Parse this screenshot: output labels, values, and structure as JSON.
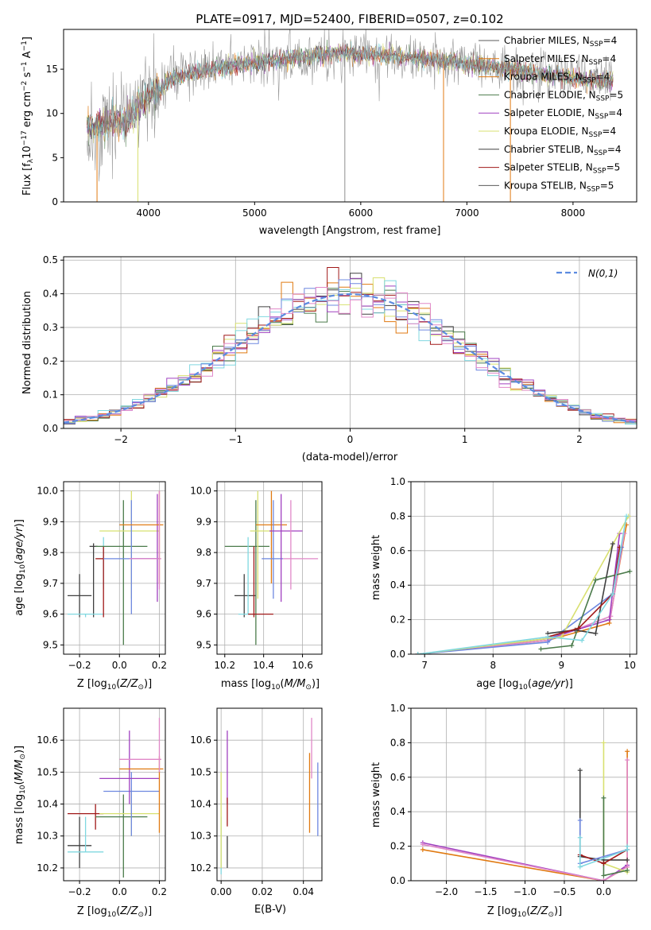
{
  "title": "PLATE=0917, MJD=52400, FIBERID=0507, z=0.102",
  "model_names": [
    "Chabrier MILES, N_SSP=4",
    "Salpeter MILES, N_SSP=4",
    "Kroupa MILES, N_SSP=4",
    "Chabrier ELODIE, N_SSP=5",
    "Salpeter ELODIE, N_SSP=4",
    "Kroupa ELODIE, N_SSP=4",
    "Chabrier STELIB, N_SSP=4",
    "Salpeter STELIB, N_SSP=5",
    "Kroupa STELIB, N_SSP=5"
  ],
  "colors": [
    "#5b5b5b",
    "#8f8f8f",
    "#e07a12",
    "#4a7a4a",
    "#a040c0",
    "#d8e070",
    "#404040",
    "#a01818",
    "#80d8e0",
    "#6e88e0",
    "#e088c8"
  ],
  "legend": [
    {
      "name": "Chabrier MILES",
      "nssp": "=4"
    },
    {
      "name": "Salpeter MILES",
      "nssp": "=4"
    },
    {
      "name": "Kroupa MILES",
      "nssp": "=4"
    },
    {
      "name": "Chabrier ELODIE",
      "nssp": "=5"
    },
    {
      "name": "Salpeter ELODIE",
      "nssp": "=4"
    },
    {
      "name": "Kroupa ELODIE",
      "nssp": "=4"
    },
    {
      "name": "Chabrier STELIB",
      "nssp": "=4"
    },
    {
      "name": "Salpeter STELIB",
      "nssp": "=5"
    },
    {
      "name": "Kroupa STELIB",
      "nssp": "=5"
    }
  ],
  "chart_data": [
    {
      "id": "spectrum",
      "type": "line",
      "xlabel": "wavelength [Angstrom, rest frame]",
      "ylabel": "Flux [f_λ 10^-17 erg cm^-2 s^-1 A^-1]",
      "xlim": [
        3200,
        8600
      ],
      "ylim": [
        0,
        19.5
      ],
      "xticks": [
        4000,
        5000,
        6000,
        7000,
        8000
      ],
      "yticks": [
        0,
        5,
        10,
        15
      ],
      "continuum": {
        "x": [
          3400,
          3600,
          3800,
          4000,
          4100,
          4200,
          4400,
          4600,
          5000,
          5400,
          5800,
          6200,
          6600,
          7000,
          7400,
          7800,
          8000,
          8200,
          8400
        ],
        "y": [
          8.2,
          8.8,
          9.4,
          11.8,
          12.6,
          13.8,
          14.5,
          15.1,
          15.8,
          16.3,
          16.9,
          16.6,
          16.2,
          15.6,
          15.0,
          14.3,
          14.0,
          13.8,
          13.6
        ]
      }
    },
    {
      "id": "residuals",
      "type": "line",
      "xlabel": "(data-model)/error",
      "ylabel": "Normed distribution",
      "xlim": [
        -2.5,
        2.5
      ],
      "ylim": [
        0,
        0.51
      ],
      "xticks": [
        -2,
        -1,
        0,
        1,
        2
      ],
      "yticks": [
        0.0,
        0.1,
        0.2,
        0.3,
        0.4,
        0.5
      ],
      "legend": "N(0,1)",
      "gaussian": {
        "mean": 0,
        "sigma": 1
      },
      "hist_bin_width": 0.1
    },
    {
      "id": "age_vs_Z",
      "type": "errorbar",
      "xlabel": "Z [log10(Z/Z⊙)]",
      "ylabel": "age  [log10(age/yr)]",
      "xlim": [
        -0.28,
        0.23
      ],
      "ylim": [
        9.47,
        10.03
      ],
      "xticks": [
        -0.2,
        0.0,
        0.2
      ],
      "yticks": [
        9.5,
        9.6,
        9.7,
        9.8,
        9.9,
        10.0
      ],
      "points": [
        {
          "c": "#404040",
          "x": -0.2,
          "xlo": -0.26,
          "xhi": -0.14,
          "y": 9.66,
          "ylo": 9.59,
          "yhi": 9.73
        },
        {
          "c": "#404040",
          "x": -0.13,
          "xlo": -0.15,
          "xhi": -0.11,
          "y": 9.82,
          "ylo": 9.59,
          "yhi": 9.83
        },
        {
          "c": "#80d8e0",
          "x": -0.17,
          "xlo": -0.26,
          "xhi": -0.08,
          "y": 9.6,
          "ylo": 9.59,
          "yhi": 9.6
        },
        {
          "c": "#80d8e0",
          "x": -0.08,
          "xlo": -0.08,
          "xhi": -0.08,
          "y": 9.77,
          "ylo": 9.68,
          "yhi": 9.85
        },
        {
          "c": "#a01818",
          "x": -0.08,
          "xlo": -0.12,
          "xhi": -0.08,
          "y": 9.78,
          "ylo": 9.59,
          "yhi": 9.82
        },
        {
          "c": "#4a7a4a",
          "x": 0.02,
          "xlo": -0.12,
          "xhi": 0.14,
          "y": 9.82,
          "ylo": 9.5,
          "yhi": 9.97
        },
        {
          "c": "#d8e070",
          "x": 0.06,
          "xlo": -0.1,
          "xhi": 0.2,
          "y": 9.87,
          "ylo": 9.65,
          "yhi": 10.0
        },
        {
          "c": "#6e88e0",
          "x": 0.06,
          "xlo": -0.08,
          "xhi": 0.2,
          "y": 9.78,
          "ylo": 9.6,
          "yhi": 9.97
        },
        {
          "c": "#a040c0",
          "x": 0.19,
          "xlo": 0.05,
          "xhi": 0.2,
          "y": 9.78,
          "ylo": 9.64,
          "yhi": 9.99
        },
        {
          "c": "#e07a12",
          "x": 0.2,
          "xlo": 0.0,
          "xhi": 0.22,
          "y": 9.89,
          "ylo": 9.7,
          "yhi": 10.0
        },
        {
          "c": "#e088c8",
          "x": 0.2,
          "xlo": 0.05,
          "xhi": 0.21,
          "y": 9.78,
          "ylo": 9.68,
          "yhi": 10.0
        }
      ]
    },
    {
      "id": "age_vs_mass",
      "type": "errorbar",
      "xlabel": "mass [log10(M/M⊙)]",
      "ylabel": "",
      "xlim": [
        10.16,
        10.7
      ],
      "ylim": [
        9.47,
        10.03
      ],
      "xticks": [
        10.2,
        10.4,
        10.6
      ],
      "yticks": [
        9.5,
        9.6,
        9.7,
        9.8,
        9.9,
        10.0
      ],
      "points": [
        {
          "c": "#404040",
          "x": 10.3,
          "xlo": 10.25,
          "xhi": 10.36,
          "y": 9.66,
          "ylo": 9.59,
          "yhi": 9.73
        },
        {
          "c": "#4a7a4a",
          "x": 10.36,
          "xlo": 10.2,
          "xhi": 10.43,
          "y": 9.82,
          "ylo": 9.5,
          "yhi": 9.97
        },
        {
          "c": "#80d8e0",
          "x": 10.32,
          "xlo": 10.27,
          "xhi": 10.38,
          "y": 9.6,
          "ylo": 9.6,
          "yhi": 9.85
        },
        {
          "c": "#a01818",
          "x": 10.35,
          "xlo": 10.32,
          "xhi": 10.45,
          "y": 9.6,
          "ylo": 9.59,
          "yhi": 9.82
        },
        {
          "c": "#d8e070",
          "x": 10.37,
          "xlo": 10.33,
          "xhi": 10.44,
          "y": 9.87,
          "ylo": 9.65,
          "yhi": 10.0
        },
        {
          "c": "#e07a12",
          "x": 10.44,
          "xlo": 10.36,
          "xhi": 10.52,
          "y": 9.89,
          "ylo": 9.7,
          "yhi": 10.0
        },
        {
          "c": "#6e88e0",
          "x": 10.45,
          "xlo": 10.39,
          "xhi": 10.5,
          "y": 9.78,
          "ylo": 9.65,
          "yhi": 9.97
        },
        {
          "c": "#a040c0",
          "x": 10.49,
          "xlo": 10.43,
          "xhi": 10.6,
          "y": 9.87,
          "ylo": 9.64,
          "yhi": 9.99
        },
        {
          "c": "#e088c8",
          "x": 10.54,
          "xlo": 10.5,
          "xhi": 10.68,
          "y": 9.78,
          "ylo": 9.68,
          "yhi": 9.97
        }
      ]
    },
    {
      "id": "weight_vs_age",
      "type": "line",
      "xlabel": "age  [log10(age/yr)]",
      "ylabel": "mass weight",
      "xlim": [
        6.8,
        10.1
      ],
      "ylim": [
        0,
        1.0
      ],
      "xticks": [
        7,
        8,
        9,
        10
      ],
      "yticks": [
        0.0,
        0.2,
        0.4,
        0.6,
        0.8,
        1.0
      ],
      "series": [
        {
          "c": "#e07a12",
          "x": [
            6.9,
            8.8,
            9.7,
            9.95
          ],
          "y": [
            0.0,
            0.08,
            0.18,
            0.75
          ]
        },
        {
          "c": "#e088c8",
          "x": [
            6.9,
            8.8,
            9.72,
            9.92
          ],
          "y": [
            0.0,
            0.08,
            0.22,
            0.7
          ]
        },
        {
          "c": "#a040c0",
          "x": [
            6.9,
            8.8,
            9.7,
            9.85
          ],
          "y": [
            0.0,
            0.09,
            0.2,
            0.7
          ]
        },
        {
          "c": "#6e88e0",
          "x": [
            6.9,
            8.8,
            9.75,
            9.88
          ],
          "y": [
            0.0,
            0.07,
            0.35,
            0.62
          ]
        },
        {
          "c": "#d8e070",
          "x": [
            6.9,
            9.0,
            9.98
          ],
          "y": [
            0.0,
            0.1,
            0.8
          ]
        },
        {
          "c": "#4a7a4a",
          "x": [
            8.7,
            9.15,
            9.5,
            10.0
          ],
          "y": [
            0.03,
            0.05,
            0.43,
            0.48
          ]
        },
        {
          "c": "#404040",
          "x": [
            8.8,
            9.2,
            9.5,
            9.75
          ],
          "y": [
            0.12,
            0.14,
            0.12,
            0.64
          ]
        },
        {
          "c": "#a01818",
          "x": [
            8.8,
            9.25,
            9.75,
            9.85
          ],
          "y": [
            0.1,
            0.15,
            0.35,
            0.62
          ]
        },
        {
          "c": "#80d8e0",
          "x": [
            6.9,
            8.8,
            9.3,
            9.75,
            9.95
          ],
          "y": [
            0.0,
            0.1,
            0.08,
            0.35,
            0.8
          ]
        }
      ]
    },
    {
      "id": "mass_vs_Z",
      "type": "errorbar",
      "xlabel": "Z [log10(Z/Z⊙)]",
      "ylabel": "mass [log10(M/M⊙)]",
      "xlim": [
        -0.28,
        0.23
      ],
      "ylim": [
        10.16,
        10.7
      ],
      "xticks": [
        -0.2,
        0.0,
        0.2
      ],
      "yticks": [
        10.2,
        10.3,
        10.4,
        10.5,
        10.6
      ],
      "points": [
        {
          "c": "#404040",
          "x": -0.2,
          "xlo": -0.26,
          "xhi": -0.14,
          "y": 10.27,
          "ylo": 10.2,
          "yhi": 10.36
        },
        {
          "c": "#80d8e0",
          "x": -0.17,
          "xlo": -0.26,
          "xhi": -0.08,
          "y": 10.25,
          "ylo": 10.25,
          "yhi": 10.36
        },
        {
          "c": "#a01818",
          "x": -0.12,
          "xlo": -0.26,
          "xhi": -0.08,
          "y": 10.37,
          "ylo": 10.32,
          "yhi": 10.4
        },
        {
          "c": "#4a7a4a",
          "x": 0.02,
          "xlo": -0.12,
          "xhi": 0.14,
          "y": 10.36,
          "ylo": 10.17,
          "yhi": 10.43
        },
        {
          "c": "#d8e070",
          "x": 0.06,
          "xlo": -0.1,
          "xhi": 0.2,
          "y": 10.37,
          "ylo": 10.3,
          "yhi": 10.45
        },
        {
          "c": "#6e88e0",
          "x": 0.06,
          "xlo": -0.08,
          "xhi": 0.2,
          "y": 10.44,
          "ylo": 10.3,
          "yhi": 10.5
        },
        {
          "c": "#a040c0",
          "x": 0.05,
          "xlo": -0.1,
          "xhi": 0.2,
          "y": 10.48,
          "ylo": 10.4,
          "yhi": 10.63
        },
        {
          "c": "#e07a12",
          "x": 0.2,
          "xlo": 0.0,
          "xhi": 0.22,
          "y": 10.51,
          "ylo": 10.31,
          "yhi": 10.55
        },
        {
          "c": "#e088c8",
          "x": 0.2,
          "xlo": 0.0,
          "xhi": 0.21,
          "y": 10.54,
          "ylo": 10.5,
          "yhi": 10.67
        }
      ]
    },
    {
      "id": "mass_vs_ebv",
      "type": "errorbar",
      "xlabel": "E(B-V)",
      "ylabel": "",
      "xlim": [
        -0.002,
        0.049
      ],
      "ylim": [
        10.16,
        10.7
      ],
      "xticks": [
        0.0,
        0.02,
        0.04
      ],
      "yticks": [
        10.2,
        10.3,
        10.4,
        10.5,
        10.6
      ],
      "points": [
        {
          "c": "#80d8e0",
          "x": 0.0,
          "xlo": 0.0,
          "xhi": 0.0,
          "y": 10.25,
          "ylo": 10.18,
          "yhi": 10.36
        },
        {
          "c": "#d8e070",
          "x": 0.0,
          "xlo": 0.0,
          "xhi": 0.0,
          "y": 10.37,
          "ylo": 10.2,
          "yhi": 10.5
        },
        {
          "c": "#404040",
          "x": 0.003,
          "xlo": 0.003,
          "xhi": 0.003,
          "y": 10.27,
          "ylo": 10.2,
          "yhi": 10.3
        },
        {
          "c": "#a040c0",
          "x": 0.003,
          "xlo": 0.003,
          "xhi": 0.003,
          "y": 10.48,
          "ylo": 10.4,
          "yhi": 10.63
        },
        {
          "c": "#a01818",
          "x": 0.003,
          "xlo": 0.003,
          "xhi": 0.003,
          "y": 10.37,
          "ylo": 10.33,
          "yhi": 10.42
        },
        {
          "c": "#e07a12",
          "x": 0.043,
          "xlo": 0.043,
          "xhi": 0.043,
          "y": 10.51,
          "ylo": 10.31,
          "yhi": 10.56
        },
        {
          "c": "#e088c8",
          "x": 0.044,
          "xlo": 0.044,
          "xhi": 0.044,
          "y": 10.54,
          "ylo": 10.48,
          "yhi": 10.67
        },
        {
          "c": "#6e88e0",
          "x": 0.047,
          "xlo": 0.047,
          "xhi": 0.047,
          "y": 10.44,
          "ylo": 10.3,
          "yhi": 10.53
        }
      ]
    },
    {
      "id": "weight_vs_Z",
      "type": "line",
      "xlabel": "Z [log10(Z/Z⊙)]",
      "ylabel": "mass weight",
      "xlim": [
        -2.45,
        0.42
      ],
      "ylim": [
        0,
        1.0
      ],
      "xticks": [
        -2.0,
        -1.5,
        -1.0,
        -0.5,
        0.0
      ],
      "yticks": [
        0.0,
        0.2,
        0.4,
        0.6,
        0.8,
        1.0
      ],
      "series": [
        {
          "c": "#e07a12",
          "x": [
            -2.3,
            0.0,
            0.3,
            0.3
          ],
          "y": [
            0.18,
            0.0,
            0.08,
            0.75
          ]
        },
        {
          "c": "#a040c0",
          "x": [
            -2.3,
            0.0,
            0.3
          ],
          "y": [
            0.22,
            0.0,
            0.09
          ]
        },
        {
          "c": "#e088c8",
          "x": [
            -2.3,
            0.0,
            0.3,
            0.3
          ],
          "y": [
            0.21,
            0.0,
            0.08,
            0.7
          ]
        },
        {
          "c": "#d8e070",
          "x": [
            0.0,
            0.0,
            0.3
          ],
          "y": [
            0.8,
            0.1,
            0.05
          ]
        },
        {
          "c": "#4a7a4a",
          "x": [
            0.0,
            0.0,
            0.3
          ],
          "y": [
            0.48,
            0.03,
            0.06
          ]
        },
        {
          "c": "#404040",
          "x": [
            -0.3,
            -0.3,
            0.0,
            0.3
          ],
          "y": [
            0.64,
            0.14,
            0.12,
            0.12
          ]
        },
        {
          "c": "#a01818",
          "x": [
            -0.3,
            0.0,
            0.3
          ],
          "y": [
            0.15,
            0.1,
            0.18
          ]
        },
        {
          "c": "#6e88e0",
          "x": [
            -0.3,
            -0.3,
            0.3
          ],
          "y": [
            0.35,
            0.1,
            0.18
          ]
        },
        {
          "c": "#80d8e0",
          "x": [
            -0.3,
            -0.3,
            0.3,
            0.3
          ],
          "y": [
            0.25,
            0.08,
            0.18,
            0.2
          ]
        }
      ]
    }
  ]
}
